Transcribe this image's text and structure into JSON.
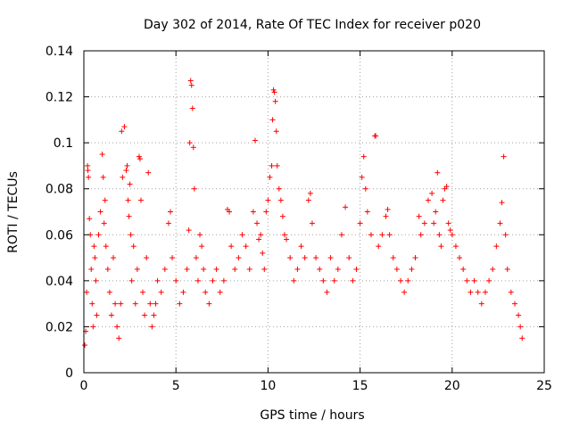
{
  "chart_data": {
    "type": "scatter",
    "title": "Day 302 of 2014, Rate Of TEC Index for receiver p020",
    "xlabel": "GPS time / hours",
    "ylabel": "ROTI / TECUs",
    "xlim": [
      0,
      25
    ],
    "ylim": [
      0,
      0.14
    ],
    "xticks": [
      0,
      5,
      10,
      15,
      20,
      25
    ],
    "yticks": [
      0,
      0.02,
      0.04,
      0.06,
      0.08,
      0.1,
      0.12,
      0.14
    ],
    "xtick_labels": [
      "0",
      "5",
      "10",
      "15",
      "20",
      "25"
    ],
    "ytick_labels": [
      "0",
      "0.02",
      "0.04",
      "0.06",
      "0.08",
      "0.1",
      "0.12",
      "0.14"
    ],
    "grid": true,
    "marker": "+",
    "color": "#ff0000",
    "series": [
      {
        "name": "p020",
        "points": [
          [
            0.05,
            0.012
          ],
          [
            0.1,
            0.018
          ],
          [
            0.15,
            0.035
          ],
          [
            0.2,
            0.09
          ],
          [
            0.22,
            0.088
          ],
          [
            0.25,
            0.085
          ],
          [
            0.3,
            0.067
          ],
          [
            0.35,
            0.06
          ],
          [
            0.4,
            0.045
          ],
          [
            0.45,
            0.03
          ],
          [
            0.5,
            0.02
          ],
          [
            0.55,
            0.055
          ],
          [
            0.6,
            0.05
          ],
          [
            0.65,
            0.04
          ],
          [
            0.7,
            0.025
          ],
          [
            0.8,
            0.06
          ],
          [
            0.9,
            0.07
          ],
          [
            1.0,
            0.095
          ],
          [
            1.05,
            0.085
          ],
          [
            1.1,
            0.065
          ],
          [
            1.15,
            0.075
          ],
          [
            1.2,
            0.055
          ],
          [
            1.3,
            0.045
          ],
          [
            1.4,
            0.035
          ],
          [
            1.5,
            0.025
          ],
          [
            1.6,
            0.05
          ],
          [
            1.7,
            0.03
          ],
          [
            1.8,
            0.02
          ],
          [
            1.9,
            0.015
          ],
          [
            2.0,
            0.03
          ],
          [
            2.05,
            0.105
          ],
          [
            2.1,
            0.085
          ],
          [
            2.2,
            0.107
          ],
          [
            2.3,
            0.088
          ],
          [
            2.35,
            0.09
          ],
          [
            2.4,
            0.075
          ],
          [
            2.45,
            0.068
          ],
          [
            2.5,
            0.082
          ],
          [
            2.55,
            0.06
          ],
          [
            2.6,
            0.04
          ],
          [
            2.7,
            0.055
          ],
          [
            2.8,
            0.03
          ],
          [
            2.9,
            0.045
          ],
          [
            3.0,
            0.094
          ],
          [
            3.05,
            0.093
          ],
          [
            3.1,
            0.075
          ],
          [
            3.2,
            0.035
          ],
          [
            3.3,
            0.025
          ],
          [
            3.4,
            0.05
          ],
          [
            3.5,
            0.087
          ],
          [
            3.6,
            0.03
          ],
          [
            3.7,
            0.02
          ],
          [
            3.8,
            0.025
          ],
          [
            3.9,
            0.03
          ],
          [
            4.0,
            0.04
          ],
          [
            4.2,
            0.035
          ],
          [
            4.4,
            0.045
          ],
          [
            4.6,
            0.065
          ],
          [
            4.7,
            0.07
          ],
          [
            4.8,
            0.05
          ],
          [
            5.0,
            0.04
          ],
          [
            5.2,
            0.03
          ],
          [
            5.4,
            0.035
          ],
          [
            5.6,
            0.045
          ],
          [
            5.7,
            0.062
          ],
          [
            5.75,
            0.1
          ],
          [
            5.8,
            0.127
          ],
          [
            5.85,
            0.125
          ],
          [
            5.9,
            0.115
          ],
          [
            5.95,
            0.098
          ],
          [
            6.0,
            0.08
          ],
          [
            6.1,
            0.05
          ],
          [
            6.2,
            0.04
          ],
          [
            6.3,
            0.06
          ],
          [
            6.4,
            0.055
          ],
          [
            6.5,
            0.045
          ],
          [
            6.6,
            0.035
          ],
          [
            6.8,
            0.03
          ],
          [
            7.0,
            0.04
          ],
          [
            7.2,
            0.045
          ],
          [
            7.4,
            0.035
          ],
          [
            7.6,
            0.04
          ],
          [
            7.8,
            0.071
          ],
          [
            7.9,
            0.07
          ],
          [
            8.0,
            0.055
          ],
          [
            8.2,
            0.045
          ],
          [
            8.4,
            0.05
          ],
          [
            8.6,
            0.06
          ],
          [
            8.8,
            0.055
          ],
          [
            9.0,
            0.045
          ],
          [
            9.2,
            0.07
          ],
          [
            9.3,
            0.101
          ],
          [
            9.4,
            0.065
          ],
          [
            9.5,
            0.058
          ],
          [
            9.6,
            0.06
          ],
          [
            9.7,
            0.052
          ],
          [
            9.8,
            0.045
          ],
          [
            9.9,
            0.07
          ],
          [
            10.0,
            0.075
          ],
          [
            10.1,
            0.085
          ],
          [
            10.2,
            0.09
          ],
          [
            10.25,
            0.11
          ],
          [
            10.3,
            0.123
          ],
          [
            10.35,
            0.122
          ],
          [
            10.4,
            0.118
          ],
          [
            10.45,
            0.105
          ],
          [
            10.5,
            0.09
          ],
          [
            10.6,
            0.08
          ],
          [
            10.7,
            0.075
          ],
          [
            10.8,
            0.068
          ],
          [
            10.9,
            0.06
          ],
          [
            11.0,
            0.058
          ],
          [
            11.2,
            0.05
          ],
          [
            11.4,
            0.04
          ],
          [
            11.6,
            0.045
          ],
          [
            11.8,
            0.055
          ],
          [
            12.0,
            0.05
          ],
          [
            12.2,
            0.075
          ],
          [
            12.3,
            0.078
          ],
          [
            12.4,
            0.065
          ],
          [
            12.6,
            0.05
          ],
          [
            12.8,
            0.045
          ],
          [
            13.0,
            0.04
          ],
          [
            13.2,
            0.035
          ],
          [
            13.4,
            0.05
          ],
          [
            13.6,
            0.04
          ],
          [
            13.8,
            0.045
          ],
          [
            14.0,
            0.06
          ],
          [
            14.2,
            0.072
          ],
          [
            14.4,
            0.05
          ],
          [
            14.6,
            0.04
          ],
          [
            14.8,
            0.045
          ],
          [
            15.0,
            0.065
          ],
          [
            15.1,
            0.085
          ],
          [
            15.2,
            0.094
          ],
          [
            15.3,
            0.08
          ],
          [
            15.4,
            0.07
          ],
          [
            15.6,
            0.06
          ],
          [
            15.8,
            0.103
          ],
          [
            15.85,
            0.103
          ],
          [
            16.0,
            0.055
          ],
          [
            16.2,
            0.06
          ],
          [
            16.4,
            0.068
          ],
          [
            16.5,
            0.071
          ],
          [
            16.6,
            0.06
          ],
          [
            16.8,
            0.05
          ],
          [
            17.0,
            0.045
          ],
          [
            17.2,
            0.04
          ],
          [
            17.4,
            0.035
          ],
          [
            17.6,
            0.04
          ],
          [
            17.8,
            0.045
          ],
          [
            18.0,
            0.05
          ],
          [
            18.2,
            0.068
          ],
          [
            18.3,
            0.06
          ],
          [
            18.5,
            0.065
          ],
          [
            18.7,
            0.075
          ],
          [
            18.9,
            0.078
          ],
          [
            19.0,
            0.065
          ],
          [
            19.1,
            0.07
          ],
          [
            19.2,
            0.087
          ],
          [
            19.3,
            0.06
          ],
          [
            19.4,
            0.055
          ],
          [
            19.5,
            0.075
          ],
          [
            19.6,
            0.08
          ],
          [
            19.7,
            0.081
          ],
          [
            19.8,
            0.065
          ],
          [
            19.9,
            0.062
          ],
          [
            20.0,
            0.06
          ],
          [
            20.2,
            0.055
          ],
          [
            20.4,
            0.05
          ],
          [
            20.6,
            0.045
          ],
          [
            20.8,
            0.04
          ],
          [
            21.0,
            0.035
          ],
          [
            21.2,
            0.04
          ],
          [
            21.4,
            0.035
          ],
          [
            21.6,
            0.03
          ],
          [
            21.8,
            0.035
          ],
          [
            22.0,
            0.04
          ],
          [
            22.2,
            0.045
          ],
          [
            22.4,
            0.055
          ],
          [
            22.6,
            0.065
          ],
          [
            22.7,
            0.074
          ],
          [
            22.8,
            0.094
          ],
          [
            22.9,
            0.06
          ],
          [
            23.0,
            0.045
          ],
          [
            23.2,
            0.035
          ],
          [
            23.4,
            0.03
          ],
          [
            23.6,
            0.025
          ],
          [
            23.7,
            0.02
          ],
          [
            23.8,
            0.015
          ]
        ]
      }
    ]
  }
}
